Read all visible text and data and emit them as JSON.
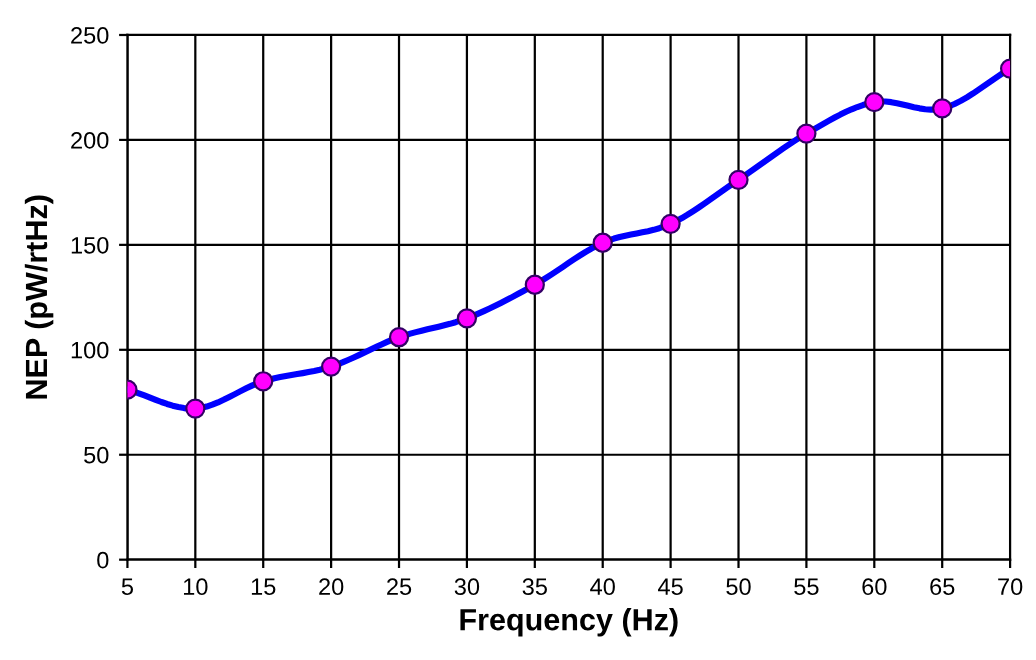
{
  "chart_data": {
    "type": "line",
    "xlabel": "Frequency (Hz)",
    "ylabel": "NEP (pW/rtHz)",
    "x": [
      5,
      10,
      15,
      20,
      25,
      30,
      35,
      40,
      45,
      50,
      55,
      60,
      65,
      70
    ],
    "series": [
      {
        "color": "#0000ff",
        "values": [
          81,
          72,
          85,
          92,
          106,
          115,
          131,
          151,
          160,
          181,
          203,
          218,
          215,
          234
        ]
      }
    ],
    "xlim": [
      5,
      70
    ],
    "xticks": [
      5,
      10,
      15,
      20,
      25,
      30,
      35,
      40,
      45,
      50,
      55,
      60,
      65,
      70
    ],
    "ylim": [
      0,
      250
    ],
    "yticks": [
      0,
      50,
      100,
      150,
      200,
      250
    ],
    "grid": true,
    "marker": "circle",
    "line_style": "solid"
  }
}
